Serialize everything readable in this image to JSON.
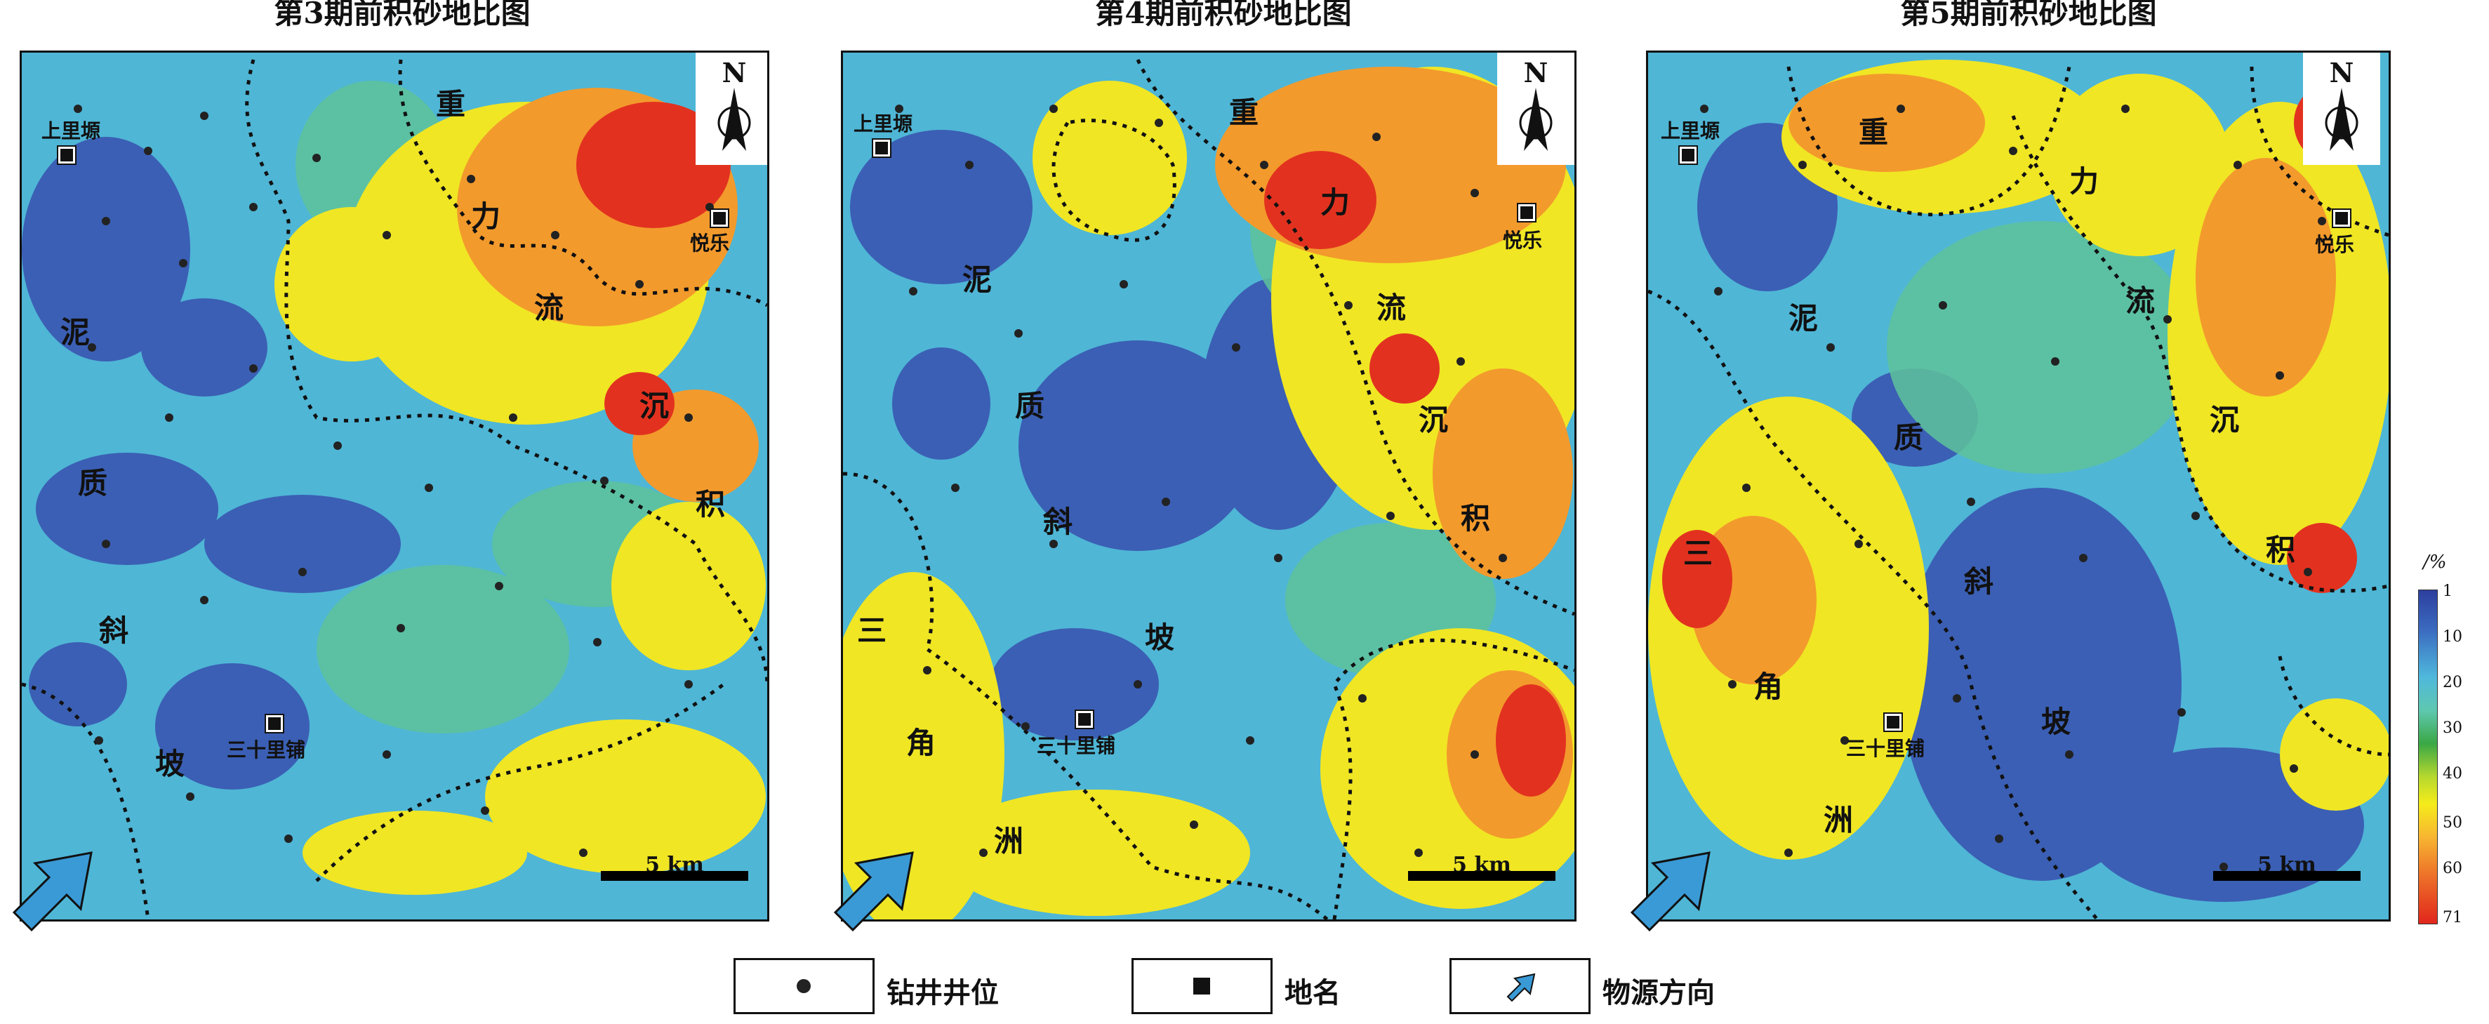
{
  "panels": [
    {
      "title": "第3期前积砂地比图",
      "places": {
        "a": "上里塬",
        "b": "悦乐",
        "c": "三十里铺"
      },
      "zones": [
        "重",
        "力",
        "流",
        "沉",
        "积",
        "泥",
        "质",
        "斜",
        "坡"
      ],
      "scale": "5 km",
      "north": "N"
    },
    {
      "title": "第4期前积砂地比图",
      "places": {
        "a": "上里塬",
        "b": "悦乐",
        "c": "三十里铺"
      },
      "zones": [
        "重",
        "力",
        "流",
        "沉",
        "积",
        "泥",
        "质",
        "斜",
        "坡",
        "三",
        "角",
        "洲"
      ],
      "scale": "5 km",
      "north": "N"
    },
    {
      "title": "第5期前积砂地比图",
      "places": {
        "a": "上里塬",
        "b": "悦乐",
        "c": "三十里铺"
      },
      "zones": [
        "重",
        "力",
        "流",
        "沉",
        "积",
        "泥",
        "质",
        "斜",
        "坡",
        "三",
        "角",
        "洲"
      ],
      "scale": "5 km",
      "north": "N"
    }
  ],
  "colorbar": {
    "unit": "/%",
    "ticks": [
      "1",
      "10",
      "20",
      "30",
      "40",
      "50",
      "60",
      "71"
    ]
  },
  "legend": {
    "well": "钻井井位",
    "place": "地名",
    "source": "物源方向"
  },
  "colors": {
    "low": "#2d3f9e",
    "mid": "#4fb8dc",
    "green": "#3aa845",
    "yellow": "#f5ec1a",
    "high": "#e1261c",
    "arrow": "#3a9ad6"
  }
}
